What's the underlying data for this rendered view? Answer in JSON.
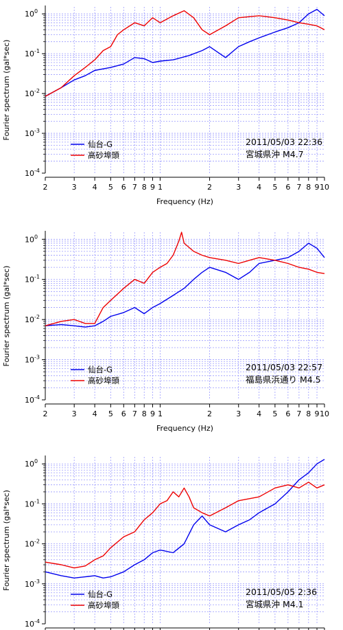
{
  "chart_data": [
    {
      "type": "line",
      "title": "",
      "xlabel": "Frequency (Hz)",
      "ylabel": "Fourier spectrum (gal*sec)",
      "x_scale": "log",
      "y_scale": "log",
      "xlim": [
        0.2,
        10
      ],
      "ylim": [
        0.0001,
        1.5
      ],
      "grid": true,
      "legend_position": "lower-left",
      "x_tick_labels": [
        "2",
        "3",
        "4",
        "5",
        "6",
        "7",
        "8",
        "9",
        "1",
        "2",
        "3",
        "4",
        "5",
        "6",
        "7",
        "8",
        "9",
        "10"
      ],
      "y_tick_labels": [
        {
          "base": "10",
          "exp": "0"
        },
        {
          "base": "10",
          "exp": "-1"
        },
        {
          "base": "10",
          "exp": "-2"
        },
        {
          "base": "10",
          "exp": "-3"
        },
        {
          "base": "10",
          "exp": "-4"
        }
      ],
      "annotation": {
        "datetime": "2011/05/03 22:36",
        "location": "宮城県沖",
        "magnitude": "M4.7"
      },
      "series": [
        {
          "name": "仙台-G",
          "color": "#0000ee",
          "points": [
            [
              0.2,
              0.0085
            ],
            [
              0.25,
              0.014
            ],
            [
              0.3,
              0.022
            ],
            [
              0.35,
              0.028
            ],
            [
              0.4,
              0.038
            ],
            [
              0.5,
              0.045
            ],
            [
              0.6,
              0.055
            ],
            [
              0.7,
              0.08
            ],
            [
              0.8,
              0.075
            ],
            [
              0.9,
              0.06
            ],
            [
              1.0,
              0.065
            ],
            [
              1.2,
              0.07
            ],
            [
              1.5,
              0.09
            ],
            [
              1.8,
              0.12
            ],
            [
              2.0,
              0.15
            ],
            [
              2.5,
              0.08
            ],
            [
              3.0,
              0.15
            ],
            [
              3.5,
              0.2
            ],
            [
              4.0,
              0.25
            ],
            [
              5.0,
              0.35
            ],
            [
              6.0,
              0.45
            ],
            [
              7.0,
              0.6
            ],
            [
              8.0,
              1.0
            ],
            [
              9.0,
              1.3
            ],
            [
              10.0,
              0.9
            ]
          ]
        },
        {
          "name": "高砂埠頭",
          "color": "#ee0000",
          "points": [
            [
              0.2,
              0.0085
            ],
            [
              0.25,
              0.014
            ],
            [
              0.3,
              0.028
            ],
            [
              0.35,
              0.045
            ],
            [
              0.4,
              0.07
            ],
            [
              0.45,
              0.12
            ],
            [
              0.5,
              0.15
            ],
            [
              0.55,
              0.3
            ],
            [
              0.6,
              0.4
            ],
            [
              0.7,
              0.6
            ],
            [
              0.8,
              0.5
            ],
            [
              0.9,
              0.8
            ],
            [
              1.0,
              0.6
            ],
            [
              1.2,
              0.9
            ],
            [
              1.4,
              1.2
            ],
            [
              1.6,
              0.8
            ],
            [
              1.8,
              0.4
            ],
            [
              2.0,
              0.3
            ],
            [
              2.5,
              0.5
            ],
            [
              3.0,
              0.8
            ],
            [
              4.0,
              0.9
            ],
            [
              5.0,
              0.8
            ],
            [
              6.0,
              0.7
            ],
            [
              7.0,
              0.6
            ],
            [
              8.0,
              0.55
            ],
            [
              9.0,
              0.5
            ],
            [
              10.0,
              0.4
            ]
          ]
        }
      ]
    },
    {
      "type": "line",
      "title": "",
      "xlabel": "Frequency (Hz)",
      "ylabel": "Fourier spectrum (gal*sec)",
      "x_scale": "log",
      "y_scale": "log",
      "xlim": [
        0.2,
        10
      ],
      "ylim": [
        0.0001,
        1.5
      ],
      "grid": true,
      "legend_position": "lower-left",
      "x_tick_labels": [
        "2",
        "3",
        "4",
        "5",
        "6",
        "7",
        "8",
        "9",
        "1",
        "2",
        "3",
        "4",
        "5",
        "6",
        "7",
        "8",
        "9",
        "10"
      ],
      "y_tick_labels": [
        {
          "base": "10",
          "exp": "0"
        },
        {
          "base": "10",
          "exp": "-1"
        },
        {
          "base": "10",
          "exp": "-2"
        },
        {
          "base": "10",
          "exp": "-3"
        },
        {
          "base": "10",
          "exp": "-4"
        }
      ],
      "annotation": {
        "datetime": "2011/05/03 22:57",
        "location": "福島県浜通り",
        "magnitude": "M4.5"
      },
      "series": [
        {
          "name": "仙台-G",
          "color": "#0000ee",
          "points": [
            [
              0.2,
              0.007
            ],
            [
              0.25,
              0.0075
            ],
            [
              0.3,
              0.007
            ],
            [
              0.35,
              0.0065
            ],
            [
              0.4,
              0.007
            ],
            [
              0.45,
              0.009
            ],
            [
              0.5,
              0.012
            ],
            [
              0.6,
              0.015
            ],
            [
              0.7,
              0.02
            ],
            [
              0.8,
              0.014
            ],
            [
              0.9,
              0.02
            ],
            [
              1.0,
              0.025
            ],
            [
              1.2,
              0.04
            ],
            [
              1.4,
              0.06
            ],
            [
              1.6,
              0.1
            ],
            [
              1.8,
              0.15
            ],
            [
              2.0,
              0.2
            ],
            [
              2.5,
              0.15
            ],
            [
              3.0,
              0.1
            ],
            [
              3.5,
              0.15
            ],
            [
              4.0,
              0.25
            ],
            [
              5.0,
              0.3
            ],
            [
              6.0,
              0.35
            ],
            [
              7.0,
              0.5
            ],
            [
              8.0,
              0.8
            ],
            [
              9.0,
              0.6
            ],
            [
              10.0,
              0.35
            ]
          ]
        },
        {
          "name": "高砂埠頭",
          "color": "#ee0000",
          "points": [
            [
              0.2,
              0.007
            ],
            [
              0.25,
              0.009
            ],
            [
              0.3,
              0.01
            ],
            [
              0.35,
              0.008
            ],
            [
              0.4,
              0.008
            ],
            [
              0.45,
              0.02
            ],
            [
              0.5,
              0.03
            ],
            [
              0.6,
              0.06
            ],
            [
              0.7,
              0.1
            ],
            [
              0.8,
              0.08
            ],
            [
              0.9,
              0.15
            ],
            [
              1.0,
              0.2
            ],
            [
              1.1,
              0.25
            ],
            [
              1.2,
              0.4
            ],
            [
              1.3,
              0.9
            ],
            [
              1.35,
              1.5
            ],
            [
              1.4,
              0.8
            ],
            [
              1.6,
              0.5
            ],
            [
              1.8,
              0.4
            ],
            [
              2.0,
              0.35
            ],
            [
              2.5,
              0.3
            ],
            [
              3.0,
              0.25
            ],
            [
              3.5,
              0.3
            ],
            [
              4.0,
              0.35
            ],
            [
              5.0,
              0.3
            ],
            [
              6.0,
              0.25
            ],
            [
              7.0,
              0.2
            ],
            [
              8.0,
              0.18
            ],
            [
              9.0,
              0.15
            ],
            [
              10.0,
              0.14
            ]
          ]
        }
      ]
    },
    {
      "type": "line",
      "title": "",
      "xlabel": "",
      "ylabel": "Fourier spectrum (gal*sec)",
      "x_scale": "log",
      "y_scale": "log",
      "xlim": [
        0.2,
        10
      ],
      "ylim": [
        0.0001,
        1.5
      ],
      "grid": true,
      "legend_position": "lower-left",
      "x_tick_labels": [],
      "y_tick_labels": [
        {
          "base": "10",
          "exp": "0"
        },
        {
          "base": "10",
          "exp": "-1"
        },
        {
          "base": "10",
          "exp": "-2"
        },
        {
          "base": "10",
          "exp": "-3"
        },
        {
          "base": "10",
          "exp": "-4"
        }
      ],
      "annotation": {
        "datetime": "2011/05/05 2:36",
        "location": "宮城県沖",
        "magnitude": "M4.1"
      },
      "series": [
        {
          "name": "仙台-G",
          "color": "#0000ee",
          "points": [
            [
              0.2,
              0.002
            ],
            [
              0.25,
              0.0016
            ],
            [
              0.3,
              0.0014
            ],
            [
              0.35,
              0.0015
            ],
            [
              0.4,
              0.0016
            ],
            [
              0.45,
              0.0014
            ],
            [
              0.5,
              0.0015
            ],
            [
              0.6,
              0.002
            ],
            [
              0.7,
              0.003
            ],
            [
              0.8,
              0.004
            ],
            [
              0.9,
              0.006
            ],
            [
              1.0,
              0.007
            ],
            [
              1.2,
              0.006
            ],
            [
              1.4,
              0.01
            ],
            [
              1.6,
              0.03
            ],
            [
              1.8,
              0.05
            ],
            [
              2.0,
              0.03
            ],
            [
              2.5,
              0.02
            ],
            [
              3.0,
              0.03
            ],
            [
              3.5,
              0.04
            ],
            [
              4.0,
              0.06
            ],
            [
              5.0,
              0.1
            ],
            [
              6.0,
              0.2
            ],
            [
              7.0,
              0.4
            ],
            [
              8.0,
              0.6
            ],
            [
              9.0,
              1.0
            ],
            [
              10.0,
              1.3
            ]
          ]
        },
        {
          "name": "高砂埠頭",
          "color": "#ee0000",
          "points": [
            [
              0.2,
              0.0035
            ],
            [
              0.25,
              0.003
            ],
            [
              0.3,
              0.0025
            ],
            [
              0.35,
              0.0028
            ],
            [
              0.4,
              0.004
            ],
            [
              0.45,
              0.005
            ],
            [
              0.5,
              0.008
            ],
            [
              0.6,
              0.015
            ],
            [
              0.7,
              0.02
            ],
            [
              0.8,
              0.04
            ],
            [
              0.9,
              0.06
            ],
            [
              1.0,
              0.1
            ],
            [
              1.1,
              0.12
            ],
            [
              1.2,
              0.2
            ],
            [
              1.3,
              0.15
            ],
            [
              1.4,
              0.25
            ],
            [
              1.5,
              0.15
            ],
            [
              1.6,
              0.08
            ],
            [
              1.8,
              0.06
            ],
            [
              2.0,
              0.05
            ],
            [
              2.5,
              0.08
            ],
            [
              3.0,
              0.12
            ],
            [
              4.0,
              0.15
            ],
            [
              5.0,
              0.25
            ],
            [
              6.0,
              0.3
            ],
            [
              7.0,
              0.25
            ],
            [
              8.0,
              0.35
            ],
            [
              9.0,
              0.25
            ],
            [
              10.0,
              0.3
            ]
          ]
        }
      ]
    }
  ]
}
